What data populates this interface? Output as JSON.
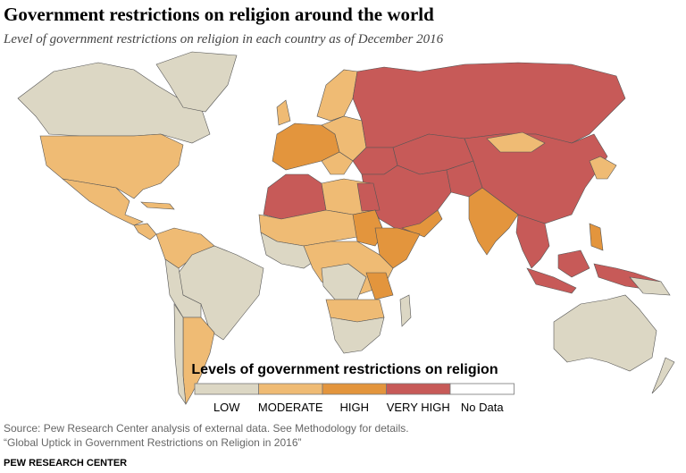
{
  "header": {
    "title": "Government restrictions on religion around the world",
    "subtitle": "Level of government restrictions on religion in each country as of December 2016"
  },
  "legend": {
    "title": "Levels of government restrictions on religion",
    "items": [
      {
        "label": "LOW",
        "color": "#dcd7c4"
      },
      {
        "label": "MODERATE",
        "color": "#efbb74"
      },
      {
        "label": "HIGH",
        "color": "#e3953d"
      },
      {
        "label": "VERY HIGH",
        "color": "#c75a58"
      },
      {
        "label": "No Data",
        "color": "#ffffff"
      }
    ]
  },
  "footer": {
    "source": [
      "Source: Pew Research Center analysis of external data. See Methodology for details.",
      "“Global Uptick in Government Restrictions on Religion in 2016”"
    ],
    "credit": "PEW RESEARCH CENTER"
  }
}
